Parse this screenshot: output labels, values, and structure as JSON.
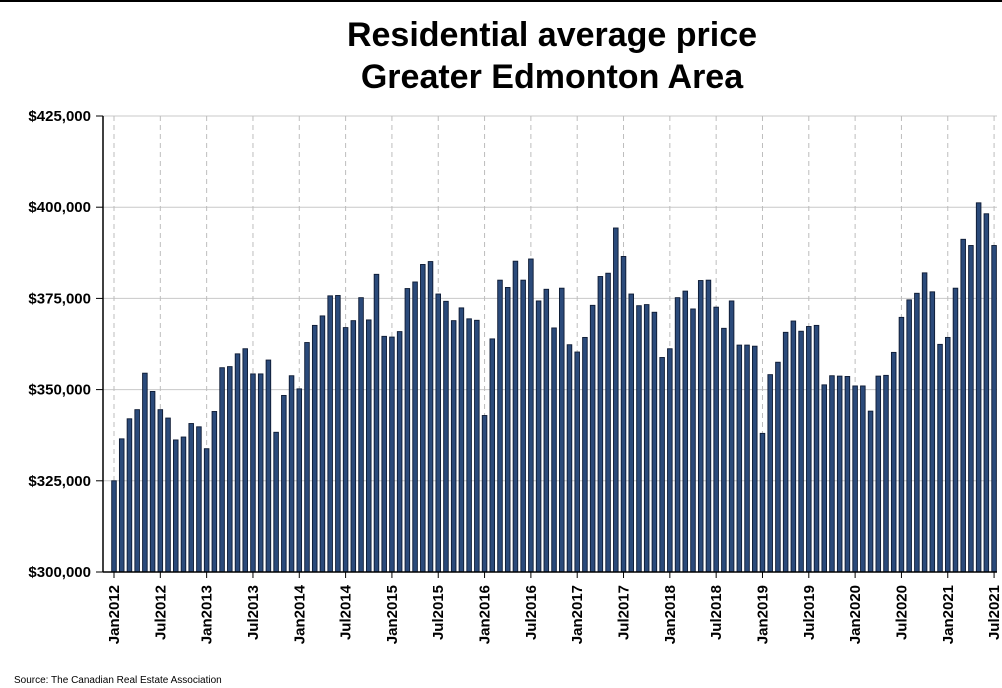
{
  "chart_data": {
    "type": "bar",
    "title": "Residential average price",
    "subtitle": "Greater Edmonton Area",
    "source": "Source: The Canadian Real Estate Association",
    "ylim": [
      300000,
      425000
    ],
    "yticks": [
      300000,
      325000,
      350000,
      375000,
      400000,
      425000
    ],
    "ytick_labels": [
      "$300,000",
      "$325,000",
      "$350,000",
      "$375,000",
      "$400,000",
      "$425,000"
    ],
    "xtick_labels": [
      {
        "index": 0,
        "label": "Jan2012"
      },
      {
        "index": 6,
        "label": "Jul2012"
      },
      {
        "index": 12,
        "label": "Jan2013"
      },
      {
        "index": 18,
        "label": "Jul2013"
      },
      {
        "index": 24,
        "label": "Jan2014"
      },
      {
        "index": 30,
        "label": "Jul2014"
      },
      {
        "index": 36,
        "label": "Jan2015"
      },
      {
        "index": 42,
        "label": "Jul2015"
      },
      {
        "index": 48,
        "label": "Jan2016"
      },
      {
        "index": 54,
        "label": "Jul2016"
      },
      {
        "index": 60,
        "label": "Jan2017"
      },
      {
        "index": 66,
        "label": "Jul2017"
      },
      {
        "index": 72,
        "label": "Jan2018"
      },
      {
        "index": 78,
        "label": "Jul2018"
      },
      {
        "index": 84,
        "label": "Jan2019"
      },
      {
        "index": 90,
        "label": "Jul2019"
      },
      {
        "index": 96,
        "label": "Jan2020"
      },
      {
        "index": 102,
        "label": "Jul2020"
      },
      {
        "index": 108,
        "label": "Jan2021"
      },
      {
        "index": 114,
        "label": "Jul2021"
      }
    ],
    "grid": true,
    "bar_color": "#2b4a7a",
    "bar_edge_color": "#0d1a33",
    "values": [
      325000,
      336500,
      342000,
      344500,
      354500,
      349500,
      344500,
      342200,
      336200,
      337000,
      340700,
      339800,
      333800,
      344000,
      356000,
      356300,
      359800,
      361200,
      354300,
      354300,
      358100,
      338300,
      348400,
      353800,
      350200,
      362900,
      367600,
      370200,
      375700,
      375800,
      367000,
      368900,
      375200,
      369100,
      381600,
      364600,
      364400,
      365900,
      377700,
      379500,
      384300,
      385100,
      376200,
      374200,
      368900,
      372400,
      369400,
      369000,
      342900,
      363900,
      380000,
      378000,
      385200,
      380000,
      385800,
      374300,
      377500,
      366900,
      377800,
      362300,
      360300,
      364300,
      373100,
      381000,
      381900,
      394300,
      386500,
      376200,
      373000,
      373300,
      371200,
      358800,
      361200,
      375200,
      377000,
      372100,
      379900,
      380000,
      372600,
      366800,
      374300,
      362200,
      362200,
      361900,
      338000,
      354100,
      357500,
      365700,
      368800,
      366000,
      367300,
      367600,
      351300,
      353800,
      353700,
      353600,
      351000,
      351000,
      344100,
      353700,
      353900,
      360200,
      369800,
      374600,
      376400,
      382000,
      376800,
      362400,
      364300,
      377800,
      391200,
      389500,
      401200,
      398200,
      389500
    ]
  }
}
